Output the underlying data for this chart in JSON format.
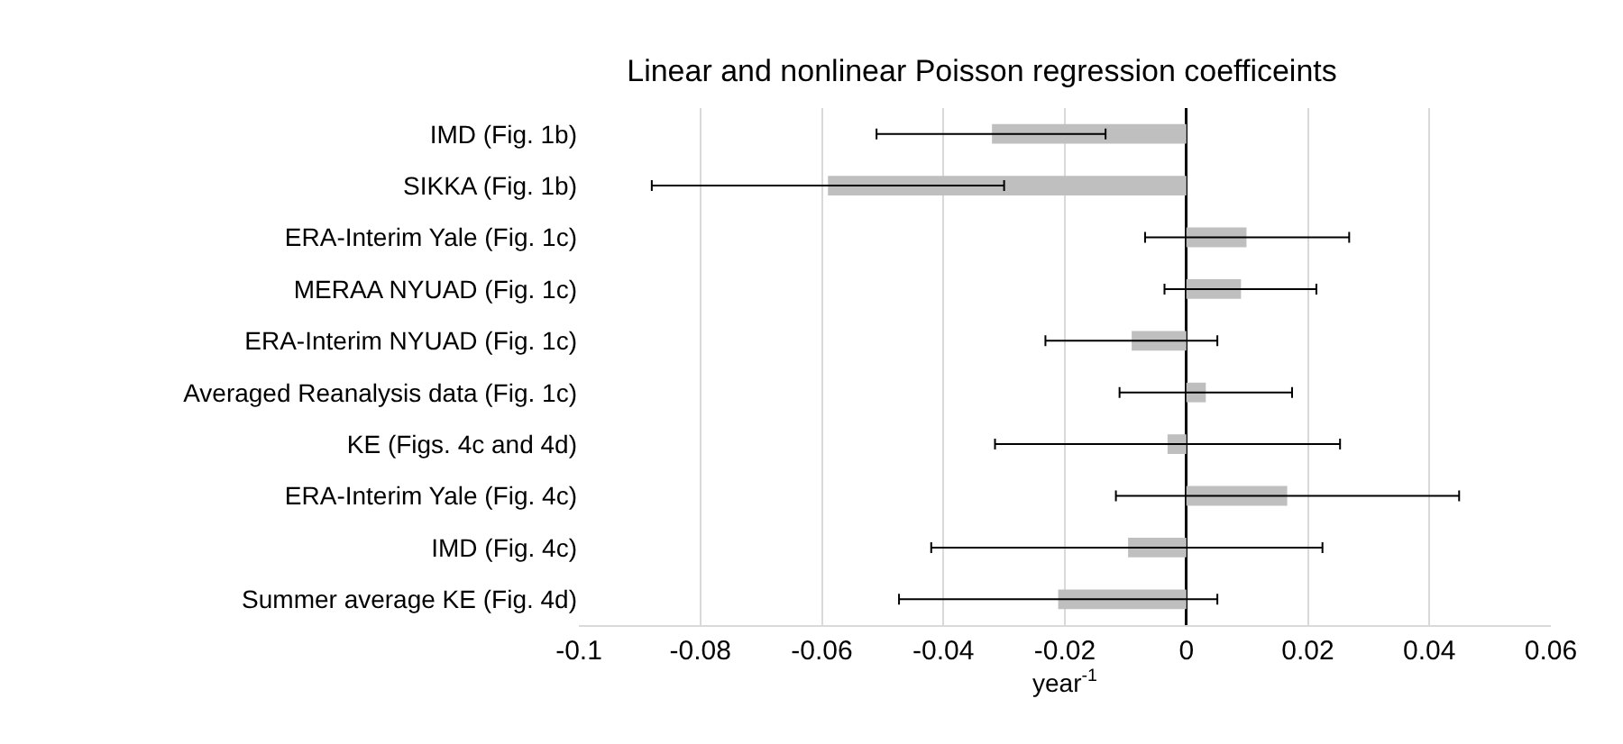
{
  "chart_data": {
    "type": "bar",
    "orientation": "horizontal",
    "title": "Linear and nonlinear Poisson regression coefficeints",
    "xlabel": "year$^{-1}$",
    "categories": [
      "IMD (Fig. 1b)",
      "SIKKA (Fig. 1b)",
      "ERA-Interim Yale (Fig. 1c)",
      "MERAA NYUAD (Fig. 1c)",
      "ERA-Interim NYUAD (Fig. 1c)",
      "Averaged Reanalysis data (Fig. 1c)",
      "KE (Figs. 4c and 4d)",
      "ERA-Interim Yale (Fig. 4c)",
      "IMD (Fig. 4c)",
      "Summer average KE (Fig. 4d)"
    ],
    "values": [
      -0.032,
      -0.059,
      0.0099,
      0.009,
      -0.009,
      0.0032,
      -0.0031,
      0.0166,
      -0.0096,
      -0.0211
    ],
    "errors": [
      [
        -0.051,
        -0.0133
      ],
      [
        -0.088,
        -0.03
      ],
      [
        -0.0068,
        0.0268
      ],
      [
        -0.0036,
        0.0214
      ],
      [
        -0.0232,
        0.0051
      ],
      [
        -0.011,
        0.0174
      ],
      [
        -0.0315,
        0.0253
      ],
      [
        -0.0116,
        0.0449
      ],
      [
        -0.042,
        0.0224
      ],
      [
        -0.0473,
        0.0051
      ]
    ],
    "color": "#bfbfbf",
    "xlim": [
      -0.1,
      0.06
    ],
    "xticks": [
      -0.1,
      -0.08,
      -0.06,
      -0.04,
      -0.02,
      0,
      0.02,
      0.04,
      0.06
    ],
    "grid": "x"
  }
}
